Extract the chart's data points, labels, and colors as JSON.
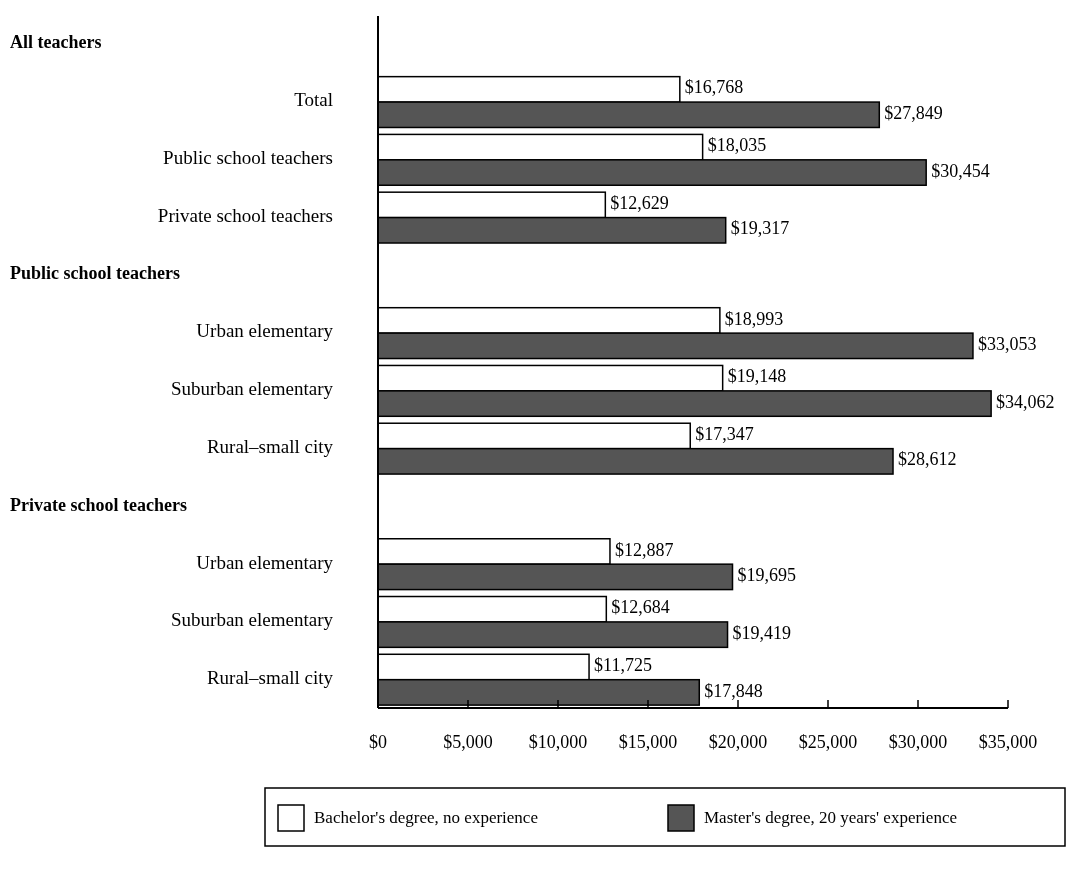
{
  "chart_data": {
    "type": "bar",
    "orientation": "horizontal",
    "categories": [
      null,
      "Total",
      "Public school teachers",
      "Private school teachers",
      null,
      "Urban elementary",
      "Suburban elementary",
      "Rural–small city",
      null,
      "Urban elementary",
      "Suburban elementary",
      "Rural–small city"
    ],
    "annotations": [
      "All teachers",
      "Public school teachers",
      "Private school teachers"
    ],
    "series": [
      {
        "name": "Bachelor's degree, no experience",
        "color": "#ffffff",
        "values": [
          null,
          16768,
          18035,
          12629,
          null,
          18993,
          19148,
          17347,
          null,
          12887,
          12684,
          11725
        ],
        "value_labels": [
          null,
          "$16,768",
          "$18,035",
          "$12,629",
          null,
          "$18,993",
          "$19,148",
          "$17,347",
          null,
          "$12,887",
          "$12,684",
          "$11,725"
        ]
      },
      {
        "name": "Master's degree, 20 years' experience",
        "color": "#555555",
        "values": [
          null,
          27849,
          30454,
          19317,
          null,
          33053,
          34062,
          28612,
          null,
          19695,
          19419,
          17848
        ],
        "value_labels": [
          null,
          "$27,849",
          "$30,454",
          "$19,317",
          null,
          "$33,053",
          "$34,062",
          "$28,612",
          null,
          "$19,695",
          "$19,419",
          "$17,848"
        ]
      }
    ],
    "xlim": [
      0,
      35000
    ],
    "xticks": [
      {
        "value": 0,
        "label": "$0"
      },
      {
        "value": 5000,
        "label": "$5,000"
      },
      {
        "value": 10000,
        "label": "$10,000"
      },
      {
        "value": 15000,
        "label": "$15,000"
      },
      {
        "value": 20000,
        "label": "$20,000"
      },
      {
        "value": 25000,
        "label": "$25,000"
      },
      {
        "value": 30000,
        "label": "$30,000"
      },
      {
        "value": 35000,
        "label": "$35,000"
      }
    ],
    "legend": "bottom"
  }
}
